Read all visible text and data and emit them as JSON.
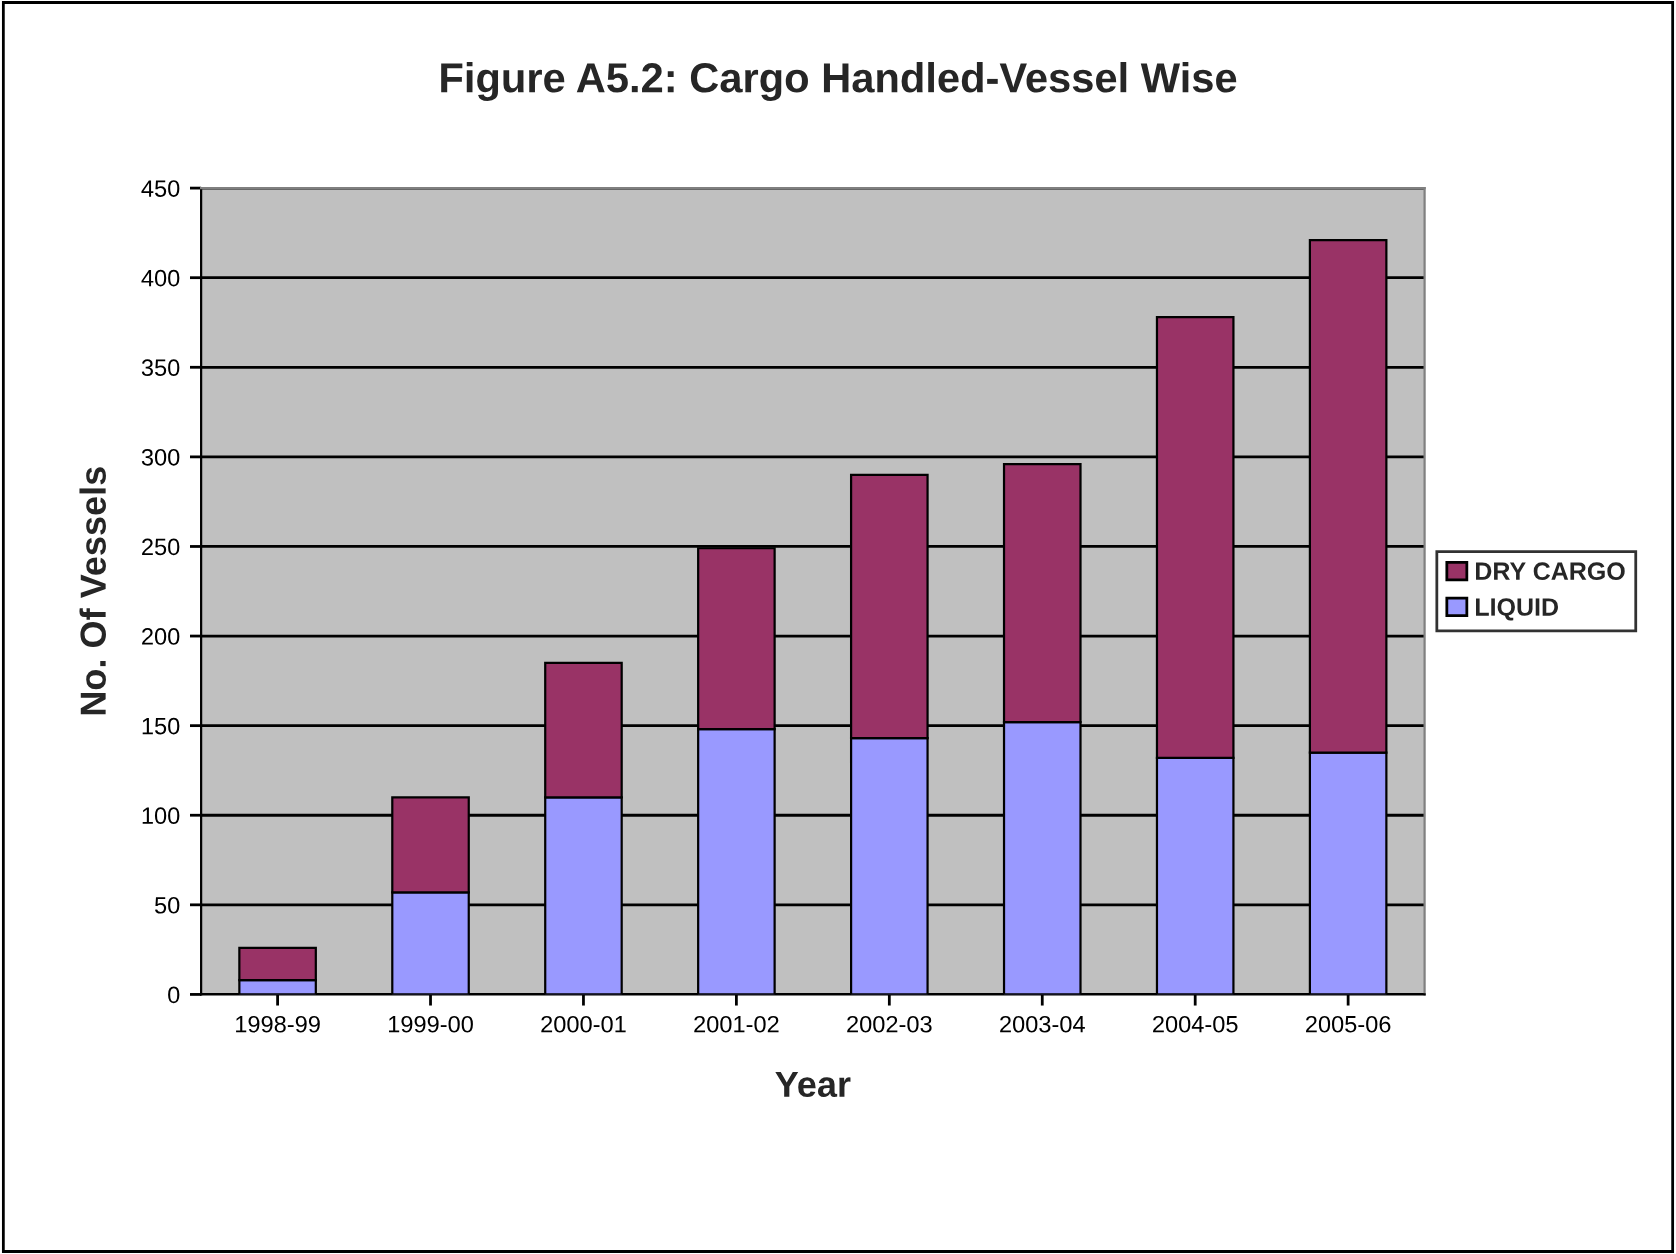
{
  "chart_data": {
    "type": "bar",
    "title": "Figure A5.2: Cargo Handled-Vessel Wise",
    "xlabel": "Year",
    "ylabel": "No. Of Vessels",
    "categories": [
      "1998-99",
      "1999-00",
      "2000-01",
      "2001-02",
      "2002-03",
      "2003-04",
      "2004-05",
      "2005-06"
    ],
    "stacked": true,
    "series": [
      {
        "name": "LIQUID",
        "color": "#9999ff",
        "values": [
          8,
          57,
          110,
          148,
          143,
          152,
          132,
          135
        ]
      },
      {
        "name": "DRY CARGO",
        "color": "#993366",
        "values": [
          18,
          53,
          75,
          101,
          147,
          144,
          246,
          286
        ]
      }
    ],
    "ylim": [
      0,
      450
    ],
    "yticks": [
      0,
      50,
      100,
      150,
      200,
      250,
      300,
      350,
      400,
      450
    ],
    "grid": "y",
    "legend": "right"
  }
}
